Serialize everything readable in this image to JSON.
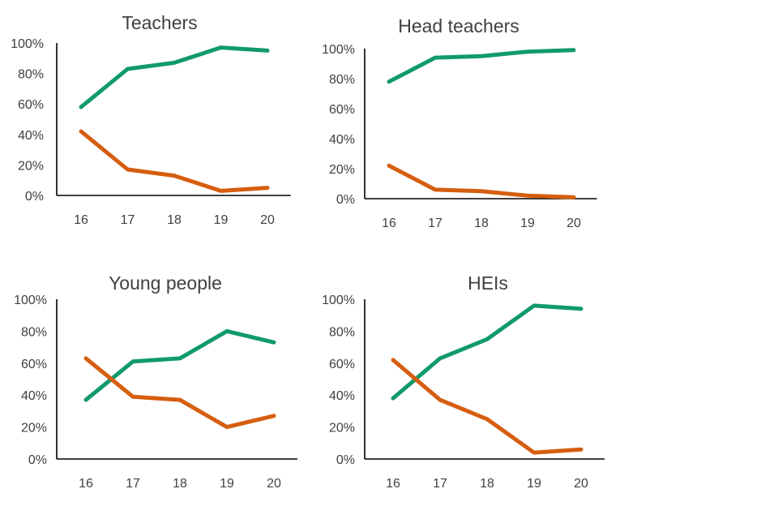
{
  "chart_data": [
    {
      "type": "line",
      "title": "Teachers",
      "categories": [
        "16",
        "17",
        "18",
        "19",
        "20"
      ],
      "y_ticks": [
        "0%",
        "20%",
        "40%",
        "60%",
        "80%",
        "100%"
      ],
      "ylim": [
        0,
        100
      ],
      "grid": false,
      "series": [
        {
          "color": "#119a6b",
          "values": [
            58,
            83,
            87,
            97,
            95
          ]
        },
        {
          "color": "#d55e0f",
          "values": [
            42,
            17,
            13,
            3,
            5
          ]
        }
      ]
    },
    {
      "type": "line",
      "title": "Head teachers",
      "categories": [
        "16",
        "17",
        "18",
        "19",
        "20"
      ],
      "y_ticks": [
        "0%",
        "20%",
        "40%",
        "60%",
        "80%",
        "100%"
      ],
      "ylim": [
        0,
        100
      ],
      "grid": false,
      "series": [
        {
          "color": "#119a6b",
          "values": [
            78,
            94,
            95,
            98,
            99
          ]
        },
        {
          "color": "#d55e0f",
          "values": [
            22,
            6,
            5,
            2,
            1
          ]
        }
      ]
    },
    {
      "type": "line",
      "title": "Young people",
      "categories": [
        "16",
        "17",
        "18",
        "19",
        "20"
      ],
      "y_ticks": [
        "0%",
        "20%",
        "40%",
        "60%",
        "80%",
        "100%"
      ],
      "ylim": [
        0,
        100
      ],
      "grid": false,
      "series": [
        {
          "color": "#119a6b",
          "values": [
            37,
            61,
            63,
            80,
            73
          ]
        },
        {
          "color": "#d55e0f",
          "values": [
            63,
            39,
            37,
            20,
            27
          ]
        }
      ]
    },
    {
      "type": "line",
      "title": "HEIs",
      "categories": [
        "16",
        "17",
        "18",
        "19",
        "20"
      ],
      "y_ticks": [
        "0%",
        "20%",
        "40%",
        "60%",
        "80%",
        "100%"
      ],
      "ylim": [
        0,
        100
      ],
      "grid": false,
      "series": [
        {
          "color": "#119a6b",
          "values": [
            38,
            63,
            75,
            96,
            94
          ]
        },
        {
          "color": "#d55e0f",
          "values": [
            62,
            37,
            25,
            4,
            6
          ]
        }
      ]
    }
  ]
}
